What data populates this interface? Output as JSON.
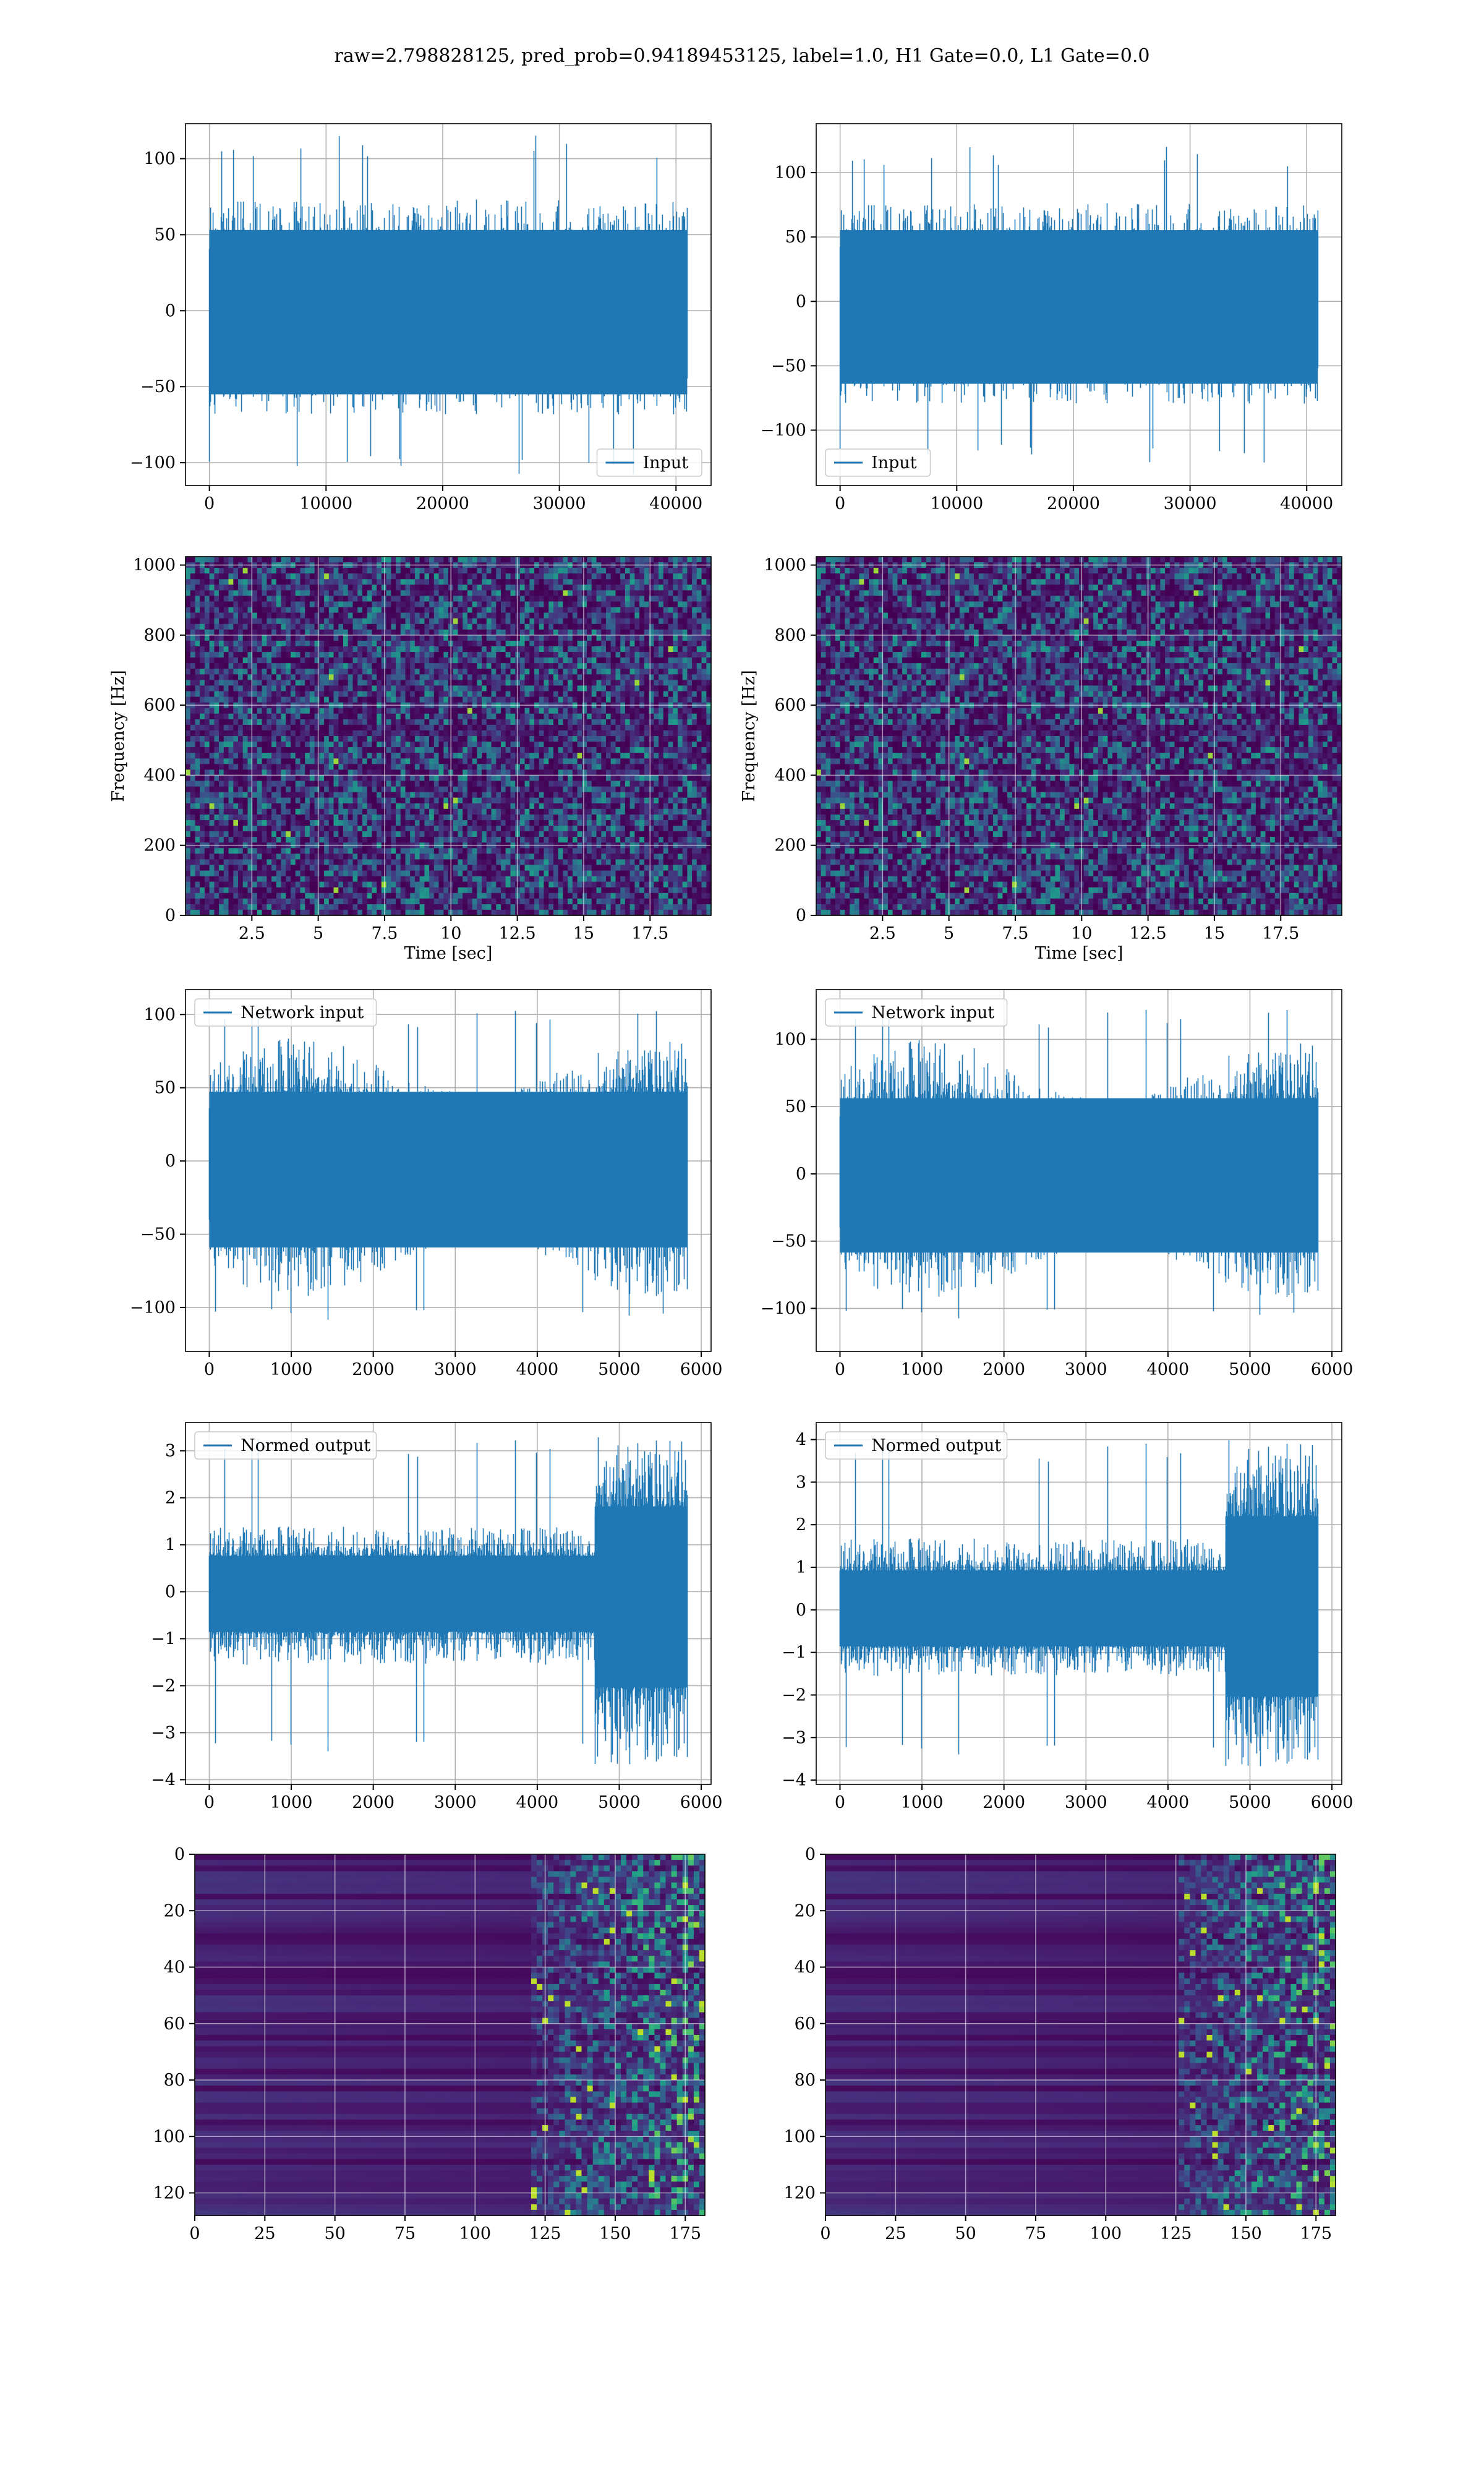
{
  "suptitle": "raw=2.798828125, pred_prob=0.94189453125, label=1.0, H1 Gate=0.0, L1 Gate=0.0",
  "colors": {
    "line": "#1f77b4",
    "grid": "#b0b0b0",
    "axes": "#000000"
  },
  "chart_data": [
    {
      "type": "line",
      "id": "input-h1",
      "series": [
        {
          "name": "Input",
          "n_points": 40960,
          "amplitude_range": [
            -110,
            118
          ]
        }
      ],
      "xlim": [
        -2048,
        43008
      ],
      "ylim": [
        -115,
        123
      ],
      "xticks": [
        0,
        10000,
        20000,
        30000,
        40000
      ],
      "yticks": [
        -100,
        -50,
        0,
        50,
        100
      ],
      "legend": {
        "loc": "lower right"
      },
      "grid": true,
      "xlabel": "",
      "ylabel": ""
    },
    {
      "type": "line",
      "id": "input-l1",
      "series": [
        {
          "name": "Input",
          "n_points": 40960,
          "amplitude_range": [
            -128,
            123
          ]
        }
      ],
      "xlim": [
        -2048,
        43008
      ],
      "ylim": [
        -143,
        138
      ],
      "xticks": [
        0,
        10000,
        20000,
        30000,
        40000
      ],
      "yticks": [
        -100,
        -50,
        0,
        50,
        100
      ],
      "legend": {
        "loc": "lower left"
      },
      "grid": true,
      "xlabel": "",
      "ylabel": ""
    },
    {
      "type": "heatmap",
      "id": "spectrogram-h1",
      "colormap": "viridis",
      "xlim": [
        0,
        19.8
      ],
      "ylim": [
        0,
        1024
      ],
      "xticks": [
        2.5,
        5.0,
        7.5,
        10.0,
        12.5,
        15.0,
        17.5
      ],
      "yticks": [
        0,
        200,
        400,
        600,
        800,
        1000
      ],
      "xlabel": "Time [sec]",
      "ylabel": "Frequency [Hz]",
      "grid": true
    },
    {
      "type": "heatmap",
      "id": "spectrogram-l1",
      "colormap": "viridis",
      "xlim": [
        0,
        19.8
      ],
      "ylim": [
        0,
        1024
      ],
      "xticks": [
        2.5,
        5.0,
        7.5,
        10.0,
        12.5,
        15.0,
        17.5
      ],
      "yticks": [
        0,
        200,
        400,
        600,
        800,
        1000
      ],
      "xlabel": "Time [sec]",
      "ylabel": "Frequency [Hz]",
      "grid": true
    },
    {
      "type": "line",
      "id": "network-input-h1",
      "series": [
        {
          "name": "Network input",
          "n_points": 5830,
          "amplitude_range": [
            -118,
            105
          ]
        }
      ],
      "xlim": [
        -290,
        6120
      ],
      "ylim": [
        -130,
        117
      ],
      "xticks": [
        0,
        1000,
        2000,
        3000,
        4000,
        5000,
        6000
      ],
      "yticks": [
        -100,
        -50,
        0,
        50,
        100
      ],
      "legend": {
        "loc": "upper left"
      },
      "grid": true
    },
    {
      "type": "line",
      "id": "network-input-l1",
      "series": [
        {
          "name": "Network input",
          "n_points": 5830,
          "amplitude_range": [
            -117,
            125
          ]
        }
      ],
      "xlim": [
        -290,
        6120
      ],
      "ylim": [
        -132,
        137
      ],
      "xticks": [
        0,
        1000,
        2000,
        3000,
        4000,
        5000,
        6000
      ],
      "yticks": [
        -100,
        -50,
        0,
        50,
        100
      ],
      "legend": {
        "loc": "upper left"
      },
      "grid": true
    },
    {
      "type": "line",
      "id": "normed-output-h1",
      "series": [
        {
          "name": "Normed output",
          "n_points": 5830,
          "amplitude_range": [
            -3.7,
            3.3
          ],
          "burst_start_x": 4700
        }
      ],
      "xlim": [
        -290,
        6120
      ],
      "ylim": [
        -4.1,
        3.6
      ],
      "xticks": [
        0,
        1000,
        2000,
        3000,
        4000,
        5000,
        6000
      ],
      "yticks": [
        -4,
        -3,
        -2,
        -1,
        0,
        1,
        2,
        3
      ],
      "legend": {
        "loc": "upper left"
      },
      "grid": true
    },
    {
      "type": "line",
      "id": "normed-output-l1",
      "series": [
        {
          "name": "Normed output",
          "n_points": 5830,
          "amplitude_range": [
            -3.7,
            4.0
          ],
          "burst_start_x": 4700
        }
      ],
      "xlim": [
        -290,
        6120
      ],
      "ylim": [
        -4.1,
        4.4
      ],
      "xticks": [
        0,
        1000,
        2000,
        3000,
        4000,
        5000,
        6000
      ],
      "yticks": [
        -4,
        -3,
        -2,
        -1,
        0,
        1,
        2,
        3,
        4
      ],
      "legend": {
        "loc": "upper left"
      },
      "grid": true
    },
    {
      "type": "heatmap",
      "id": "feature-map-h1",
      "colormap": "viridis",
      "xlim": [
        0,
        182
      ],
      "ylim": [
        128,
        0
      ],
      "xticks": [
        0,
        25,
        50,
        75,
        100,
        125,
        150,
        175
      ],
      "yticks": [
        0,
        20,
        40,
        60,
        80,
        100,
        120
      ],
      "active_from_x": 120,
      "grid": true
    },
    {
      "type": "heatmap",
      "id": "feature-map-l1",
      "colormap": "viridis",
      "xlim": [
        0,
        182
      ],
      "ylim": [
        128,
        0
      ],
      "xticks": [
        0,
        25,
        50,
        75,
        100,
        125,
        150,
        175
      ],
      "yticks": [
        0,
        20,
        40,
        60,
        80,
        100,
        120
      ],
      "active_from_x": 125,
      "grid": true
    }
  ]
}
